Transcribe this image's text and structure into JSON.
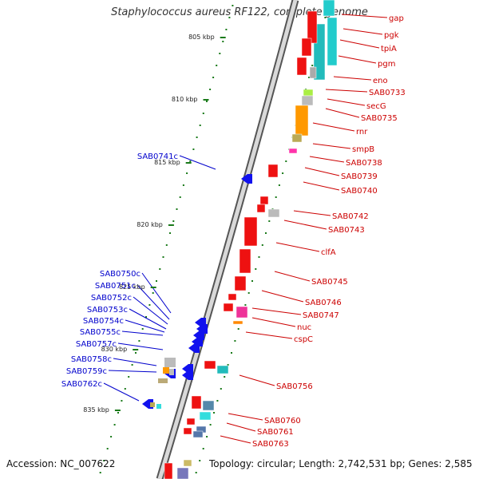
{
  "title": "Staphylococcus aureus RF122, complete genome",
  "footer": {
    "accession": "Accession: NC_007622",
    "summary": "Topology: circular; Length: 2,742,531 bp; Genes: 2,585"
  },
  "colors": {
    "forward_label": "#cc0000",
    "reverse_label": "#0000cc",
    "backbone": "#777777",
    "tick": "#1a7a1a",
    "gene_red": "#ee1111",
    "gene_blue": "#1111ee"
  },
  "kbp_marks": [
    {
      "label": "805 kbp"
    },
    {
      "label": "810 kbp"
    },
    {
      "label": "815 kbp"
    },
    {
      "label": "820 kbp"
    },
    {
      "label": "825 kbp"
    },
    {
      "label": "830 kbp"
    },
    {
      "label": "835 kbp"
    }
  ],
  "forward_genes": [
    "gap",
    "pgk",
    "tpiA",
    "pgm",
    "eno",
    "SAB0733",
    "secG",
    "SAB0735",
    "rnr",
    "smpB",
    "SAB0738",
    "SAB0739",
    "SAB0740",
    "SAB0742",
    "SAB0743",
    "clfA",
    "SAB0745",
    "SAB0746",
    "SAB0747",
    "nuc",
    "cspC",
    "SAB0756",
    "SAB0760",
    "SAB0761",
    "SAB0763"
  ],
  "reverse_genes": [
    "SAB0741c",
    "SAB0750c",
    "SAB0751c",
    "SAB0752c",
    "SAB0753c",
    "SAB0754c",
    "SAB0755c",
    "SAB0757c",
    "SAB0758c",
    "SAB0759c",
    "SAB0762c"
  ]
}
